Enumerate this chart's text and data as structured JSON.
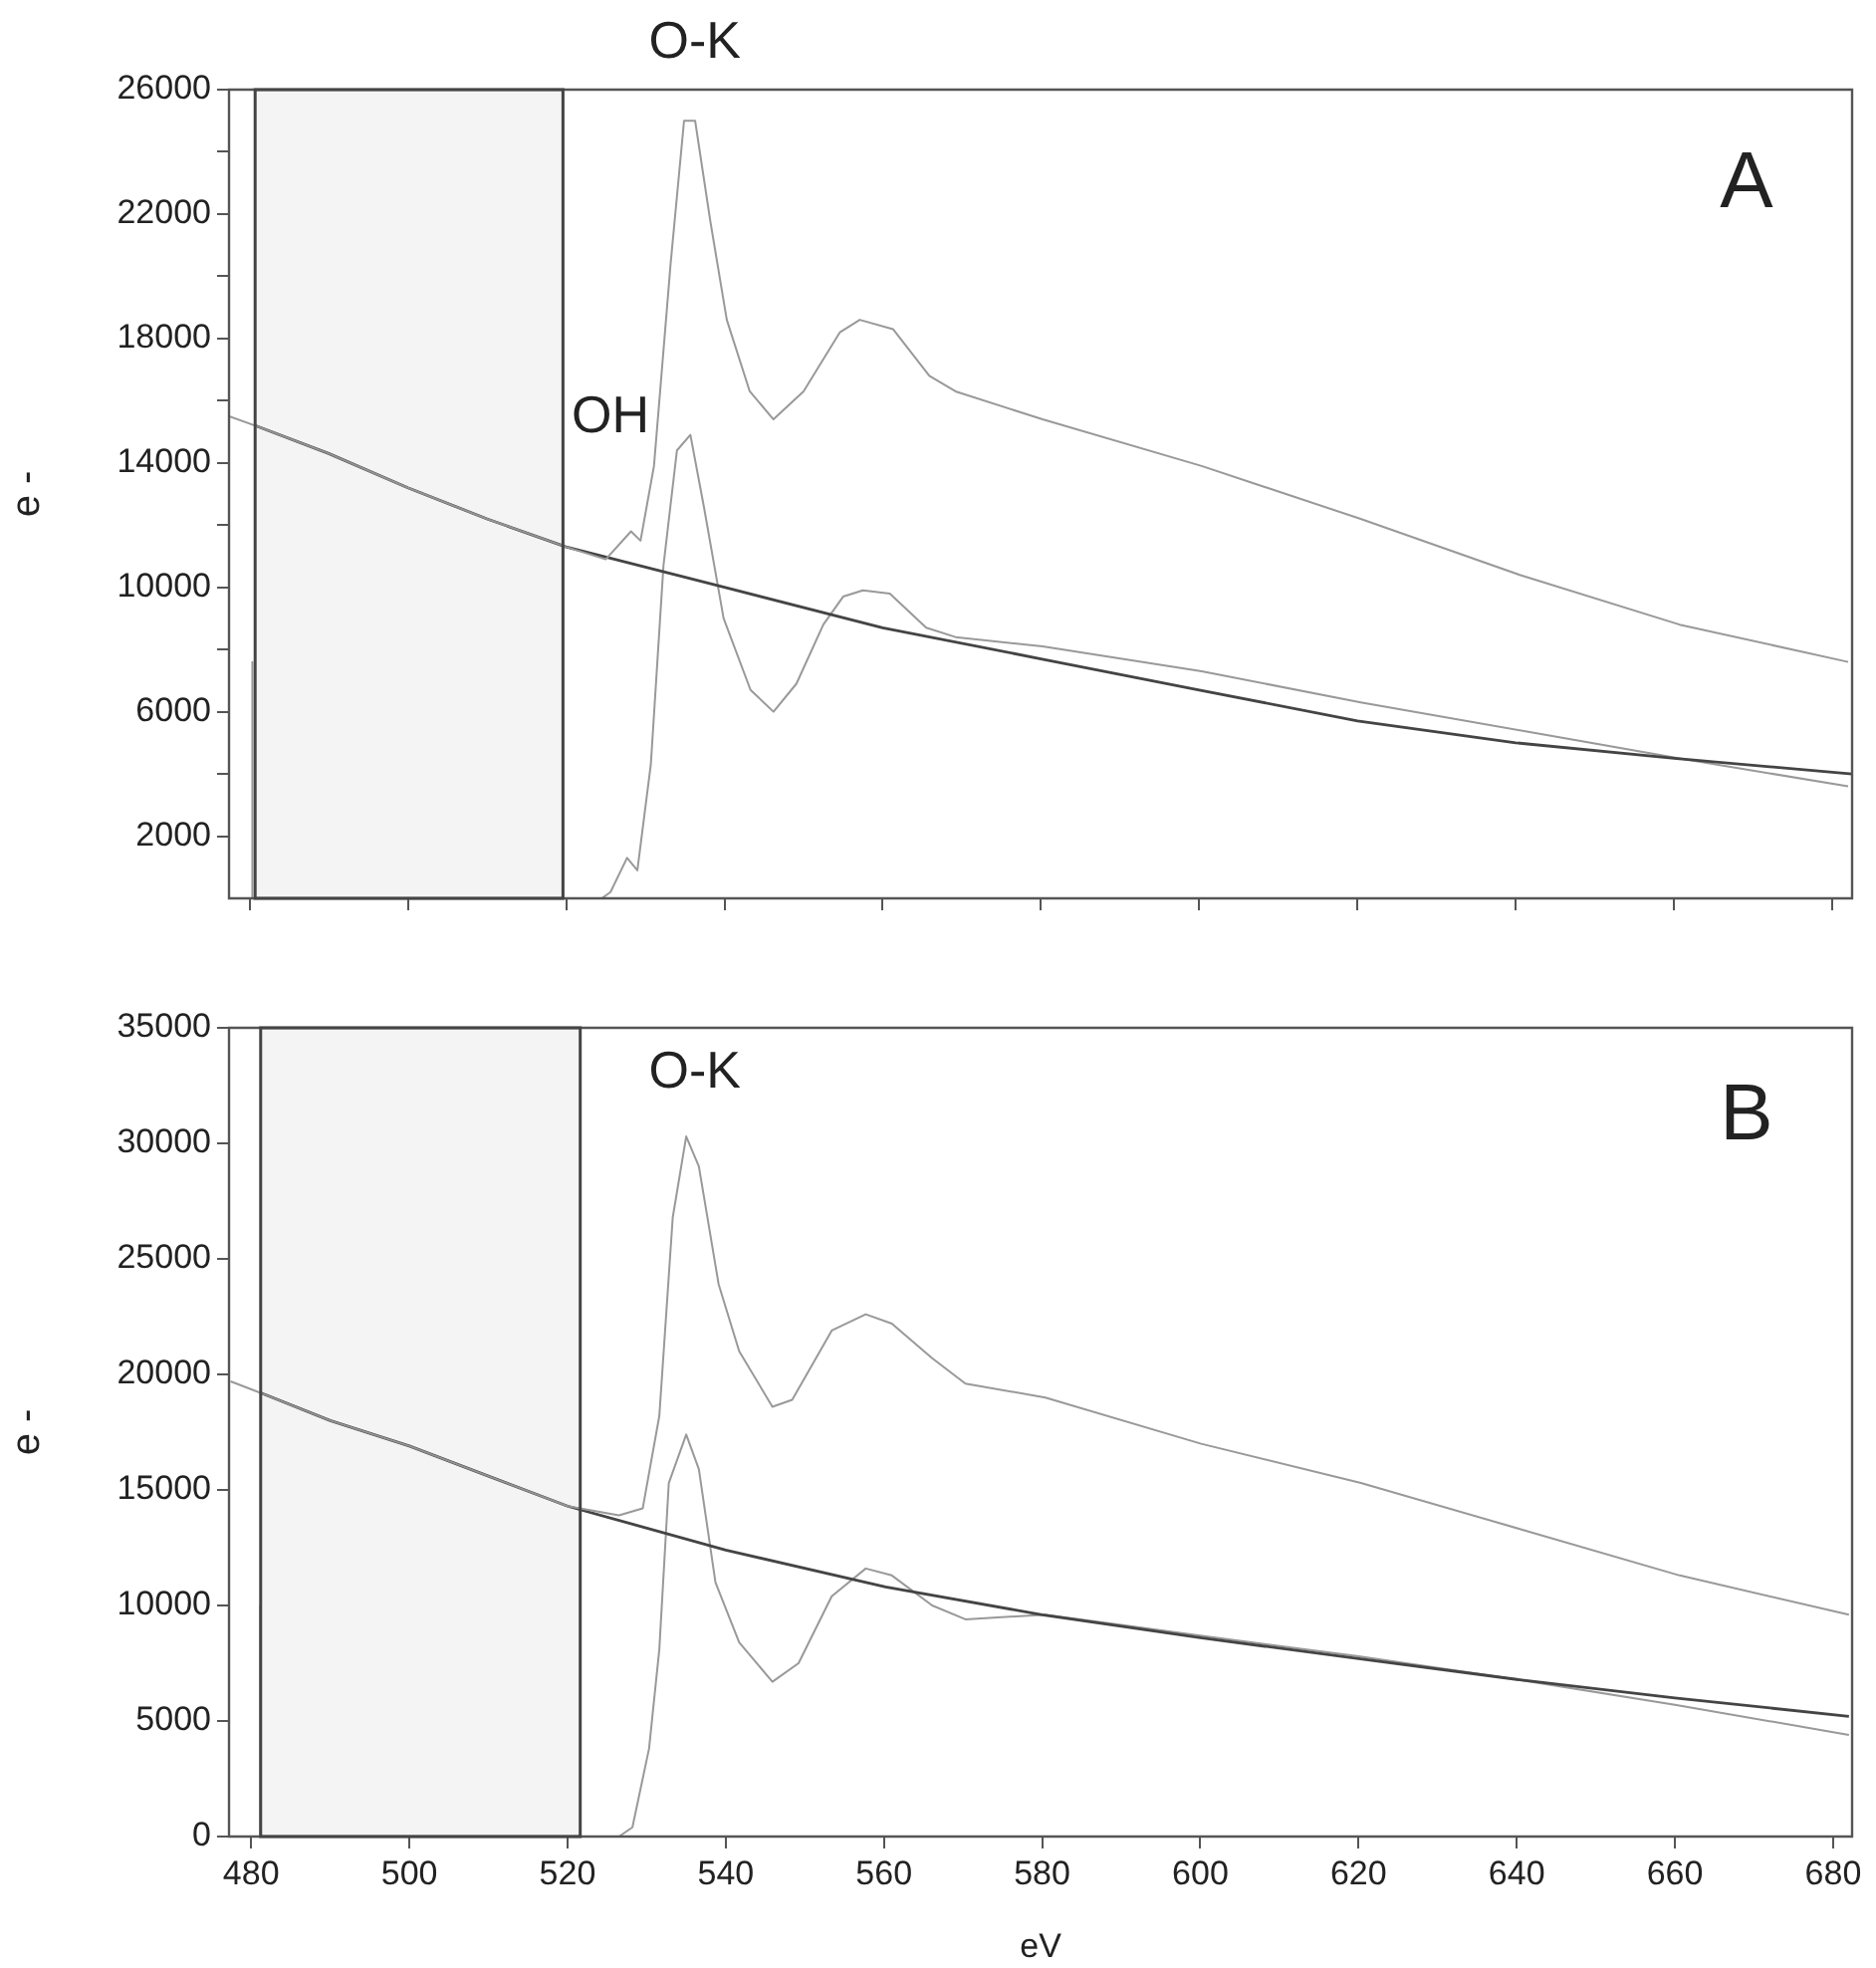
{
  "chart_data": [
    {
      "type": "line",
      "ylabel": "e -",
      "xlim": [
        477.4,
        682.5
      ],
      "ylim": [
        0,
        26000
      ],
      "xticks": [
        480,
        500,
        520,
        540,
        560,
        580,
        600,
        620,
        640,
        660,
        680
      ],
      "yticks": [
        2000,
        {
          "value": 4000,
          "label": null
        },
        6000,
        {
          "value": 8000,
          "label": null
        },
        10000,
        {
          "value": 12000,
          "label": null
        },
        14000,
        {
          "value": 16000,
          "label": null
        },
        18000,
        {
          "value": 20000,
          "label": null
        },
        22000,
        {
          "value": 24000,
          "label": null
        },
        26000
      ],
      "tick_labels": "y",
      "grid": false,
      "legend": false,
      "marker": "none",
      "line_style": "solid",
      "bands": [
        {
          "axis": "x",
          "from": 480.7,
          "to": 519.6,
          "color": "#444444"
        }
      ],
      "annotations": [
        "O-K",
        "OH",
        "A"
      ],
      "series": [
        {
          "color": "#999999",
          "x": [
            477.4,
            480.7,
            490,
            500,
            510,
            520,
            525,
            528.2,
            529.4,
            531.1,
            533.2,
            534.9,
            536.3,
            538.2,
            540.3,
            543.2,
            546.2,
            550,
            554.6,
            557.1,
            561.3,
            565.9,
            569.2,
            580.2,
            600.3,
            620.4,
            640.5,
            660.7,
            682
          ],
          "values": [
            15500,
            15200,
            14300,
            13200,
            12200,
            11300,
            10900,
            11800,
            11500,
            13900,
            20400,
            25000,
            25000,
            21800,
            18600,
            16300,
            15400,
            16300,
            18200,
            18600,
            18300,
            16800,
            16300,
            15400,
            13900,
            12200,
            10400,
            8800,
            7600
          ]
        },
        {
          "color": "#444444",
          "x": [
            480.7,
            490,
            500,
            510,
            520,
            540,
            560,
            580,
            600,
            620,
            640,
            660,
            682.5
          ],
          "values": [
            15200,
            14300,
            13200,
            12200,
            11300,
            10000,
            8700,
            7700,
            6700,
            5700,
            5000,
            4500,
            4000
          ]
        },
        {
          "color": "#999999",
          "x": [
            480.2,
            480.3,
            480.4,
            490,
            500,
            510,
            520,
            524.5,
            525.6,
            527.7,
            529,
            530.7,
            532.3,
            534,
            535.7,
            537.4,
            539.9,
            543.3,
            546.2,
            549.1,
            552.5,
            555,
            557.5,
            560.9,
            565.5,
            569.2,
            580.2,
            600.3,
            620.4,
            640.5,
            660.7,
            682
          ],
          "values": [
            0,
            7600,
            0,
            0,
            0,
            0,
            0,
            0,
            200,
            1300,
            900,
            4300,
            10700,
            14400,
            14900,
            12600,
            9000,
            6700,
            6000,
            6900,
            8800,
            9700,
            9900,
            9800,
            8700,
            8400,
            8100,
            7300,
            6300,
            5400,
            4500,
            3600
          ]
        }
      ]
    },
    {
      "type": "line",
      "xlabel": "eV",
      "ylabel": "e -",
      "xlim": [
        477.2,
        682.4
      ],
      "ylim": [
        0,
        35000
      ],
      "xticks": [
        480,
        500,
        520,
        540,
        560,
        580,
        600,
        620,
        640,
        660,
        680
      ],
      "yticks": [
        0,
        5000,
        10000,
        15000,
        20000,
        25000,
        30000,
        35000
      ],
      "grid": false,
      "legend": false,
      "marker": "none",
      "line_style": "solid",
      "bands": [
        {
          "axis": "x",
          "from": 481.2,
          "to": 521.6,
          "color": "#444444"
        }
      ],
      "annotations": [
        "O-K",
        "B"
      ],
      "series": [
        {
          "color": "#999999",
          "x": [
            477.4,
            481.2,
            490,
            500,
            510,
            520,
            526.5,
            529.5,
            531.6,
            533.3,
            535,
            536.6,
            539.1,
            541.7,
            545.9,
            548.4,
            553.4,
            557.7,
            561,
            566.1,
            570.3,
            580.4,
            600.1,
            620.3,
            640.5,
            660.6,
            682
          ],
          "values": [
            19700,
            19200,
            18000,
            16900,
            15600,
            14300,
            13900,
            14200,
            18200,
            26800,
            30300,
            29000,
            23900,
            21000,
            18600,
            18900,
            21900,
            22600,
            22200,
            20700,
            19600,
            19000,
            17000,
            15300,
            13300,
            11300,
            9600
          ]
        },
        {
          "color": "#444444",
          "x": [
            481.2,
            490,
            500,
            510,
            520,
            540,
            560.2,
            580,
            600,
            620,
            640,
            660,
            682
          ],
          "values": [
            19200,
            18000,
            16900,
            15600,
            14300,
            12400,
            10800,
            9600,
            8600,
            7700,
            6800,
            6000,
            5200
          ]
        },
        {
          "color": "#999999",
          "x": [
            481,
            481.1,
            481.2,
            490,
            500,
            510,
            520,
            526.5,
            528.2,
            530.3,
            531.6,
            532.8,
            535,
            536.6,
            538.7,
            541.7,
            545.9,
            549.2,
            553.4,
            557.7,
            561,
            566.1,
            570.3,
            580.4,
            600,
            620,
            640,
            660,
            682
          ],
          "values": [
            0,
            10000,
            0,
            0,
            0,
            0,
            0,
            0,
            400,
            3800,
            8100,
            15300,
            17400,
            15900,
            11000,
            8400,
            6700,
            7500,
            10400,
            11600,
            11300,
            10000,
            9400,
            9600,
            8700,
            7800,
            6800,
            5700,
            4400
          ]
        }
      ]
    }
  ]
}
